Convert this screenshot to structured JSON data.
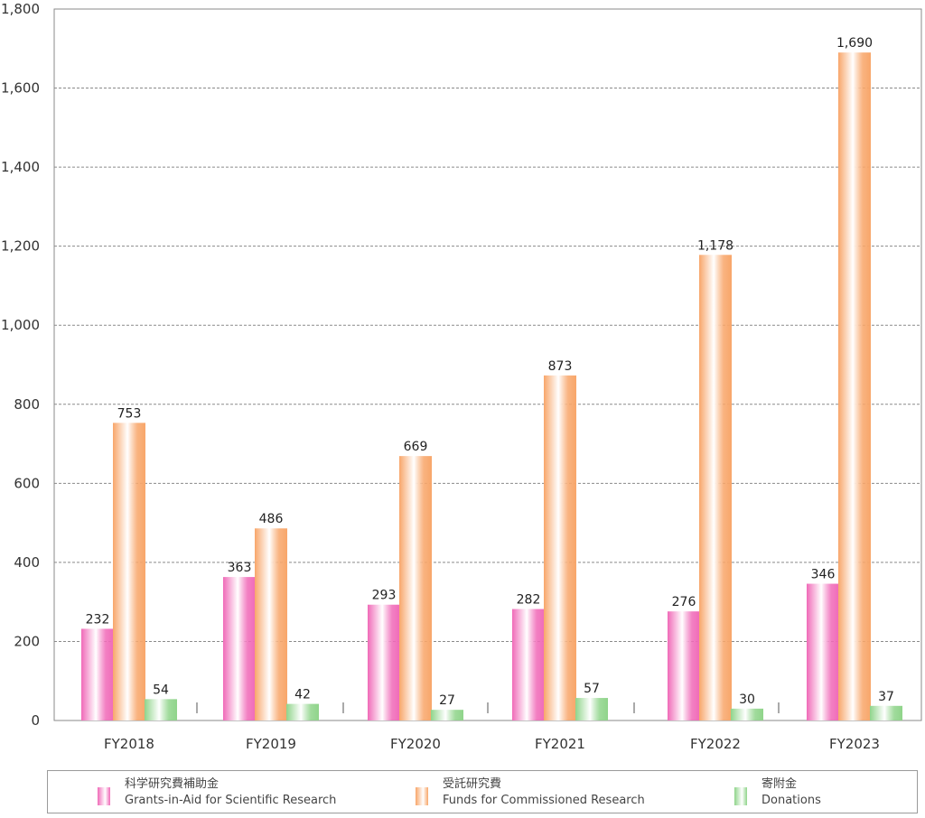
{
  "chart_data": {
    "type": "bar",
    "categories": [
      "FY2018",
      "FY2019",
      "FY2020",
      "FY2021",
      "FY2022",
      "FY2023"
    ],
    "series": [
      {
        "name": "科学研究費補助金 Grants-in-Aid for Scientific Research",
        "values": [
          232,
          363,
          293,
          282,
          276,
          346
        ],
        "color": "#f06ab8"
      },
      {
        "name": "受託研究費 Funds for Commissioned Research",
        "values": [
          753,
          486,
          669,
          873,
          1178,
          1690
        ],
        "color": "#f8a66a"
      },
      {
        "name": "寄附金 Donations",
        "values": [
          54,
          42,
          27,
          57,
          30,
          37
        ],
        "color": "#8fd48a"
      }
    ],
    "data_labels": [
      [
        "232",
        "363",
        "293",
        "282",
        "276",
        "346"
      ],
      [
        "753",
        "486",
        "669",
        "873",
        "1,178",
        "1,690"
      ],
      [
        "54",
        "42",
        "27",
        "57",
        "30",
        "37"
      ]
    ],
    "ylim": [
      0,
      1800
    ],
    "yticks": [
      0,
      200,
      400,
      600,
      800,
      1000,
      1200,
      1400,
      1600,
      1800
    ],
    "ytick_labels": [
      "0",
      "200",
      "400",
      "600",
      "800",
      "1,000",
      "1,200",
      "1,400",
      "1,600",
      "1,800"
    ],
    "grid": true,
    "legend_position": "bottom"
  },
  "legend": [
    {
      "line1": "科学研究費補助金",
      "line2": "Grants-in-Aid for Scientific Research",
      "color": "#f06ab8",
      "icon": "pink-bar-swatch"
    },
    {
      "line1": "受託研究費",
      "line2": "Funds for Commissioned Research",
      "color": "#f8a66a",
      "icon": "orange-bar-swatch"
    },
    {
      "line1": "寄附金",
      "line2": "Donations",
      "color": "#8fd48a",
      "icon": "green-bar-swatch"
    }
  ]
}
